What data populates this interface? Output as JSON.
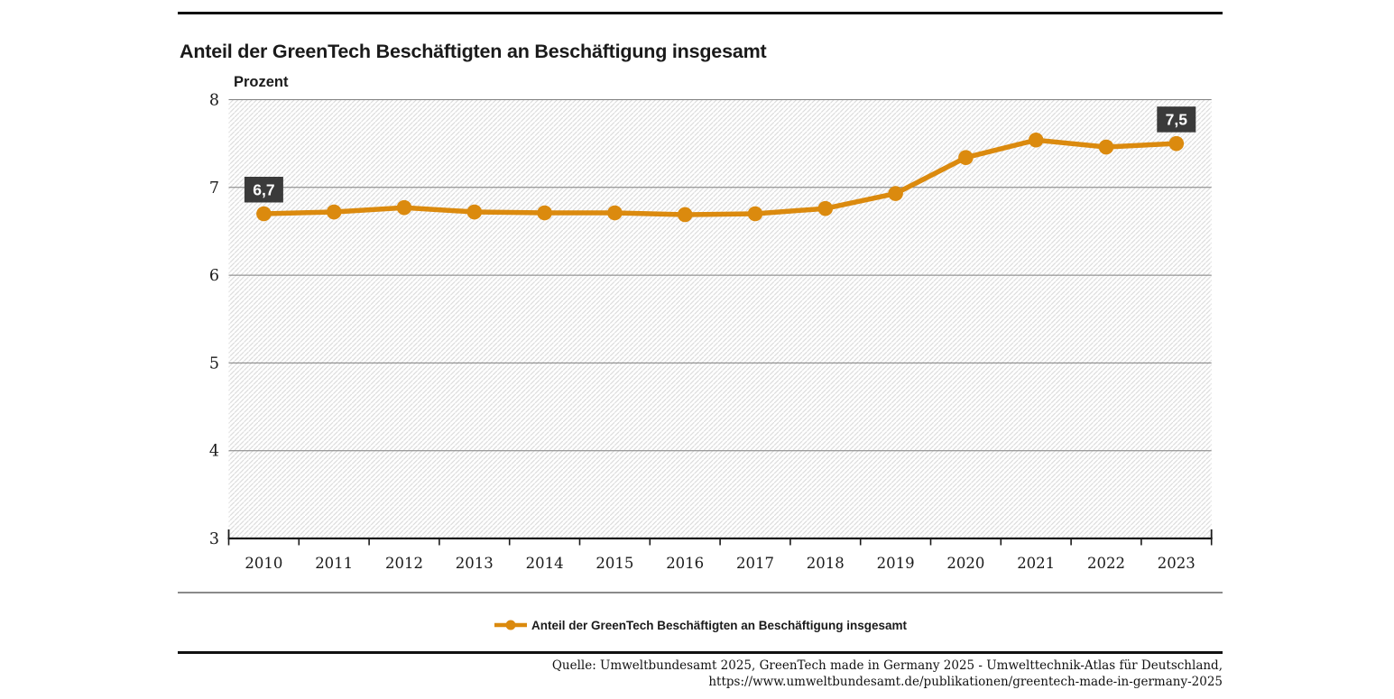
{
  "title": "Anteil der GreenTech Beschäftigten an Beschäftigung insgesamt",
  "colors": {
    "accent_orange": "#DB8A0E",
    "label_box": "#3A3A3A",
    "label_text": "#FFFFFF",
    "gridline": "#7F7F7F",
    "axis": "#1A1A1A",
    "hatch_line": "#DADADA",
    "background": "#FFFFFF"
  },
  "chart_data": {
    "type": "line",
    "title": "Anteil der GreenTech Beschäftigten an Beschäftigung insgesamt",
    "xlabel": "",
    "ylabel": "Prozent",
    "categories": [
      "2010",
      "2011",
      "2012",
      "2013",
      "2014",
      "2015",
      "2016",
      "2017",
      "2018",
      "2019",
      "2020",
      "2021",
      "2022",
      "2023"
    ],
    "series": [
      {
        "name": "Anteil der GreenTech Beschäftigten an Beschäftigung insgesamt",
        "color": "#DB8A0E",
        "values": [
          6.7,
          6.72,
          6.77,
          6.72,
          6.71,
          6.71,
          6.69,
          6.7,
          6.76,
          6.93,
          7.34,
          7.54,
          7.46,
          7.5
        ]
      }
    ],
    "ylim": [
      3,
      8
    ],
    "yticks": [
      3,
      4,
      5,
      6,
      7,
      8
    ],
    "grid": true,
    "plot_background": "diagonal-hatch",
    "legend_position": "bottom-center",
    "annotations": [
      {
        "category": "2010",
        "label": "6,7"
      },
      {
        "category": "2023",
        "label": "7,5"
      }
    ]
  },
  "legend": {
    "items": [
      {
        "label": "Anteil der GreenTech Beschäftigten an Beschäftigung insgesamt",
        "marker": "line-dot"
      }
    ]
  },
  "footer": {
    "source_line1": "Quelle: Umweltbundesamt 2025, GreenTech made in Germany 2025 - Umwelttechnik-Atlas für Deutschland,",
    "source_line2": "https://www.umweltbundesamt.de/publikationen/greentech-made-in-germany-2025"
  }
}
